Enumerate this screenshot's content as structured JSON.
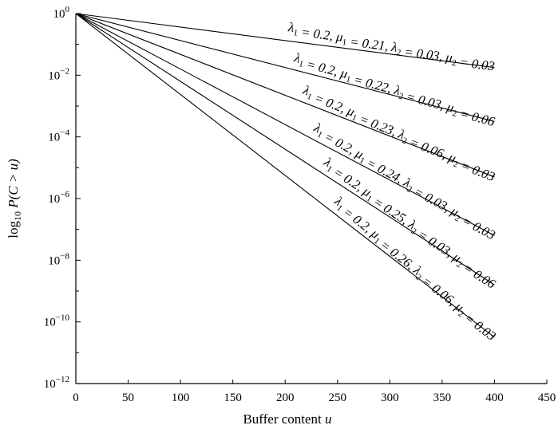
{
  "chart_data": {
    "type": "line",
    "title": "",
    "xlabel": "Buffer content u",
    "ylabel": "log10 P(C > u)",
    "xlim": [
      0,
      450
    ],
    "ylim_log10": [
      -12,
      0
    ],
    "y_scale": "log",
    "grid": false,
    "x_ticks": [
      0,
      50,
      100,
      150,
      200,
      250,
      300,
      350,
      400,
      450
    ],
    "y_ticks": [
      {
        "exp": 0,
        "label": "10^0"
      },
      {
        "exp": -2,
        "label": "10^-2"
      },
      {
        "exp": -4,
        "label": "10^-4"
      },
      {
        "exp": -6,
        "label": "10^-6"
      },
      {
        "exp": -8,
        "label": "10^-8"
      },
      {
        "exp": -10,
        "label": "10^-10"
      },
      {
        "exp": -12,
        "label": "10^-12"
      }
    ],
    "x": [
      0,
      400
    ],
    "series": [
      {
        "name": "λ1 = 0.2, μ1 = 0.21, λ2 = 0.03, μ2 = 0.03",
        "log10_y": [
          0,
          -1.75
        ]
      },
      {
        "name": "λ1 = 0.2, μ1 = 0.22, λ2 = 0.03, μ2 = 0.06",
        "log10_y": [
          0,
          -3.5
        ]
      },
      {
        "name": "λ1 = 0.2, μ1 = 0.23, λ2 = 0.06, μ2 = 0.03",
        "log10_y": [
          0,
          -5.3
        ]
      },
      {
        "name": "λ1 = 0.2, μ1 = 0.24, λ2 = 0.03, μ2 = 0.03",
        "log10_y": [
          0,
          -7.2
        ]
      },
      {
        "name": "λ1 = 0.2, μ1 = 0.25, λ2 = 0.03, μ2 = 0.06",
        "log10_y": [
          0,
          -8.8
        ]
      },
      {
        "name": "λ1 = 0.2, μ1 = 0.26, λ2 = 0.06, μ2 = 0.03",
        "log10_y": [
          0,
          -10.5
        ]
      }
    ]
  }
}
